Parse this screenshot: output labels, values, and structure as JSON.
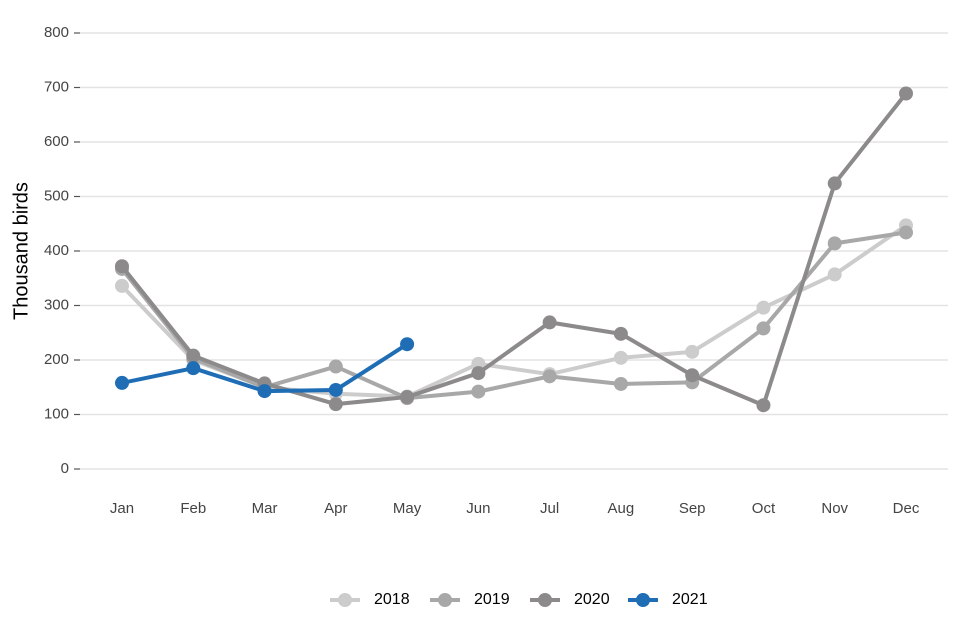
{
  "chart_data": {
    "type": "line",
    "y_label": "Thousand birds",
    "categories": [
      "Jan",
      "Feb",
      "Mar",
      "Apr",
      "May",
      "Jun",
      "Jul",
      "Aug",
      "Sep",
      "Oct",
      "Nov",
      "Dec"
    ],
    "ylim": [
      0,
      800
    ],
    "yticks": [
      0,
      100,
      200,
      300,
      400,
      500,
      600,
      700,
      800
    ],
    "grid": true,
    "legend": "bottom",
    "series": [
      {
        "name": "2018",
        "color": "#cccccc",
        "values": [
          336,
          200,
          150,
          138,
          133,
          193,
          174,
          204,
          215,
          296,
          357,
          447
        ]
      },
      {
        "name": "2019",
        "color": "#a8a8a8",
        "values": [
          367,
          203,
          150,
          188,
          130,
          142,
          170,
          156,
          159,
          258,
          414,
          434
        ]
      },
      {
        "name": "2020",
        "color": "#8c8a8a",
        "values": [
          372,
          208,
          157,
          119,
          132,
          176,
          269,
          248,
          172,
          117,
          524,
          689
        ]
      },
      {
        "name": "2021",
        "color": "#1f6db5",
        "values": [
          158,
          185,
          143,
          145,
          229,
          null,
          null,
          null,
          null,
          null,
          null,
          null
        ]
      }
    ]
  }
}
